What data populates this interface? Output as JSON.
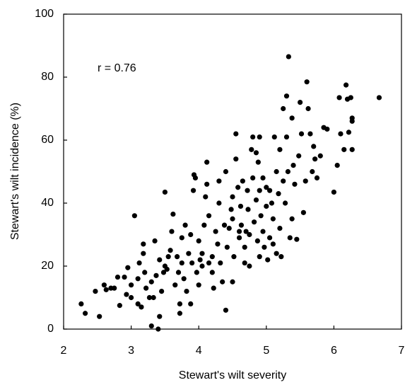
{
  "chart_data": {
    "type": "scatter",
    "x_label": "Stewart's wilt severity",
    "y_label": "Stewart's wilt incidence (%)",
    "annotation": "r = 0.76",
    "color": "#000000",
    "xlim": [
      2,
      7
    ],
    "xticks": [
      2,
      3,
      4,
      5,
      6,
      7
    ],
    "ylim": [
      0,
      100
    ],
    "yticks": [
      0,
      20,
      40,
      60,
      80,
      100
    ],
    "grid": false,
    "x": [
      2.26,
      2.32,
      2.47,
      2.53,
      2.6,
      2.63,
      2.7,
      2.8,
      2.83,
      2.9,
      2.93,
      2.95,
      3.0,
      3.0,
      3.05,
      3.1,
      3.12,
      3.15,
      3.18,
      3.18,
      3.2,
      3.22,
      3.27,
      3.3,
      3.3,
      3.33,
      3.37,
      3.4,
      3.42,
      3.42,
      3.45,
      3.48,
      3.5,
      3.5,
      3.53,
      3.58,
      3.6,
      3.62,
      3.65,
      3.68,
      3.7,
      3.72,
      3.72,
      3.75,
      3.75,
      3.78,
      3.8,
      3.82,
      3.85,
      3.88,
      3.9,
      3.92,
      3.93,
      3.95,
      3.97,
      4.0,
      4.0,
      4.02,
      4.05,
      4.08,
      4.1,
      4.12,
      4.12,
      4.15,
      4.15,
      4.2,
      4.2,
      4.22,
      4.25,
      4.28,
      4.3,
      4.3,
      4.32,
      4.35,
      4.38,
      4.4,
      4.4,
      4.42,
      4.45,
      4.48,
      4.5,
      4.5,
      4.52,
      4.55,
      4.55,
      4.58,
      4.6,
      4.6,
      4.62,
      4.63,
      4.65,
      4.68,
      4.7,
      4.72,
      4.73,
      4.75,
      4.75,
      4.78,
      4.8,
      4.8,
      4.82,
      4.85,
      4.87,
      4.88,
      4.9,
      4.9,
      4.92,
      4.95,
      4.95,
      4.97,
      5.0,
      5.0,
      5.02,
      5.05,
      5.08,
      5.1,
      5.12,
      5.15,
      5.15,
      5.18,
      5.2,
      5.22,
      5.25,
      5.28,
      5.3,
      5.3,
      5.32,
      5.33,
      5.35,
      5.38,
      5.4,
      5.42,
      5.45,
      5.48,
      5.5,
      5.52,
      5.55,
      5.58,
      5.6,
      5.62,
      5.65,
      5.68,
      5.7,
      5.72,
      5.75,
      5.8,
      5.85,
      5.9,
      6.0,
      6.05,
      6.08,
      6.1,
      6.15,
      6.18,
      6.2,
      6.22,
      6.25,
      6.27,
      6.27,
      6.27,
      6.67,
      5.1,
      5.25,
      4.68,
      3.55,
      3.35,
      2.75,
      4.05,
      4.9,
      5.2,
      5.38,
      4.5,
      3.1,
      3.88,
      4.85,
      5.05
    ],
    "values": [
      8,
      5,
      12,
      4,
      14,
      12.5,
      13,
      16.5,
      7.5,
      16.5,
      11,
      19.5,
      14,
      10,
      36,
      16,
      21,
      7,
      24,
      27,
      18,
      13,
      10,
      15,
      1,
      10,
      17,
      0,
      4,
      22,
      12,
      18,
      43.5,
      20,
      19,
      25,
      31,
      36.5,
      14,
      23,
      18,
      8,
      5,
      29,
      21,
      16,
      33,
      12,
      24,
      30,
      21,
      44,
      49,
      48,
      18,
      28,
      14,
      22,
      24,
      33,
      42,
      46,
      53,
      21,
      36,
      23,
      18,
      13,
      31,
      27,
      40,
      47,
      21,
      15,
      33,
      50,
      6,
      26,
      32,
      38,
      42,
      35,
      23,
      62,
      54,
      45,
      29,
      31,
      39,
      33,
      47,
      26,
      31,
      44,
      38,
      20,
      30,
      57,
      61,
      48,
      34,
      41,
      28,
      53,
      61,
      44,
      36,
      31,
      48,
      26,
      45,
      39,
      22,
      44,
      40,
      35,
      61,
      50,
      24,
      43,
      32,
      23,
      70,
      40,
      74,
      61,
      50,
      86.5,
      29,
      67,
      52,
      46,
      28.5,
      55,
      72,
      62,
      37,
      47,
      78.5,
      70,
      62,
      50,
      58,
      54,
      48,
      55,
      64,
      63.5,
      43.5,
      52,
      73.5,
      62,
      57,
      77.5,
      73,
      62.5,
      73.5,
      67,
      57,
      66,
      73.5,
      27,
      47,
      21,
      23,
      28,
      13,
      20,
      23,
      57,
      35,
      15,
      8,
      8,
      56,
      29
    ]
  }
}
